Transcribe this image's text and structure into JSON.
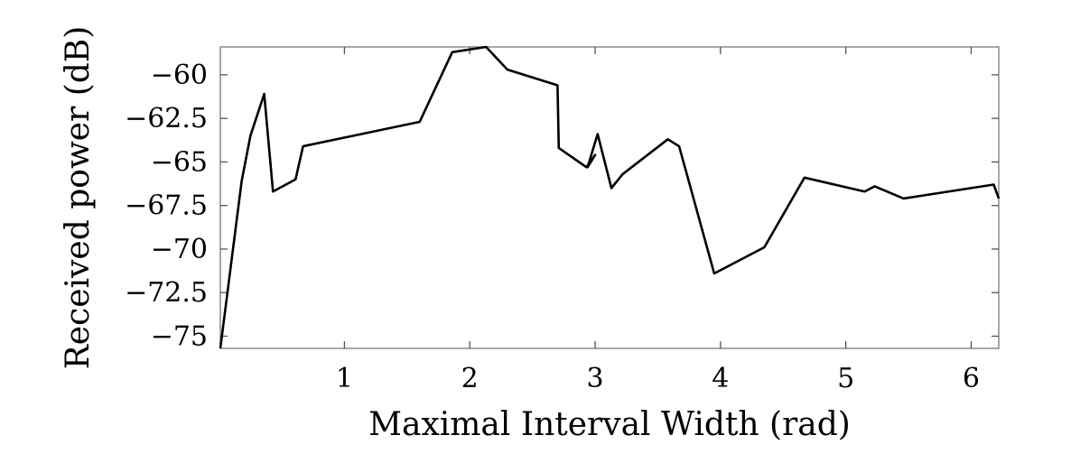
{
  "chart_data": {
    "type": "line",
    "title": "",
    "xlabel": "Maximal Interval Width (rad)",
    "ylabel": "Received power (dB)",
    "xlim": [
      0.01,
      6.22
    ],
    "ylim": [
      -75.7,
      -58.4
    ],
    "xticks": [
      1,
      2,
      3,
      4,
      5,
      6
    ],
    "yticks": [
      -75,
      -72.5,
      -70,
      -67.5,
      -65,
      -62.5,
      -60
    ],
    "xtick_labels": [
      "1",
      "2",
      "3",
      "4",
      "5",
      "6"
    ],
    "ytick_labels": [
      "−75",
      "−72.5",
      "−70",
      "−67.5",
      "−65",
      "−62.5",
      "−60"
    ],
    "grid": false,
    "line_color": "#000000",
    "series": [
      {
        "x": [
          0.01,
          0.18,
          0.25,
          0.36,
          0.43,
          0.61,
          0.67,
          1.6,
          1.86,
          2.13,
          2.3,
          2.7,
          2.71,
          2.93,
          3.0,
          2.94,
          3.02,
          3.13,
          3.22,
          3.58,
          3.67,
          3.95,
          4.35,
          4.67,
          5.15,
          5.23,
          5.46,
          6.18,
          6.22
        ],
        "y": [
          -75.7,
          -66.1,
          -63.5,
          -61.1,
          -66.7,
          -66.0,
          -64.1,
          -62.7,
          -58.7,
          -58.4,
          -59.7,
          -60.6,
          -64.2,
          -65.3,
          -64.6,
          -65.3,
          -63.4,
          -66.5,
          -65.7,
          -63.7,
          -64.1,
          -71.4,
          -69.9,
          -65.9,
          -66.7,
          -66.4,
          -67.1,
          -66.3,
          -67.1
        ]
      }
    ]
  }
}
